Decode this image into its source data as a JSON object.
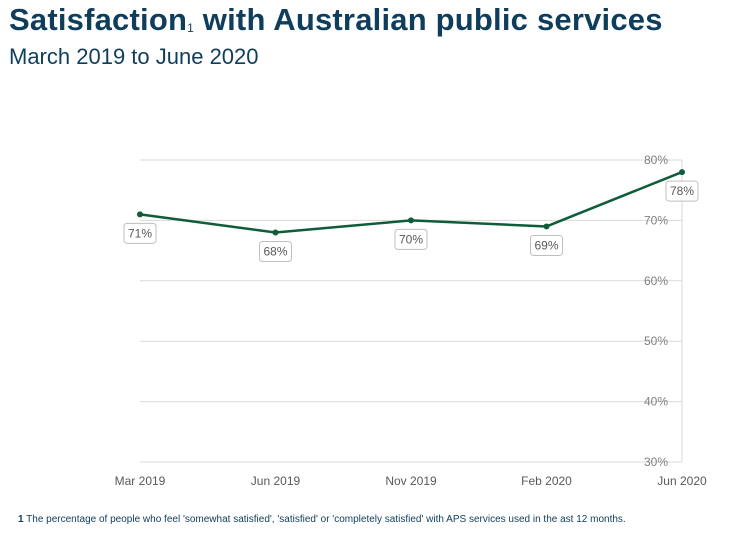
{
  "title": "Satisfaction",
  "title_sup": "1",
  "title_rest": " with Australian public services",
  "subtitle": "March 2019 to June 2020",
  "footnote_marker": "1",
  "footnote": " The percentage of people who feel 'somewhat satisfied', 'satisfied' or 'completely satisfied' with APS services used in the ast 12 months.",
  "chart_data": {
    "type": "line",
    "categories": [
      "Mar 2019",
      "Jun 2019",
      "Nov 2019",
      "Feb 2020",
      "Jun 2020"
    ],
    "values": [
      71,
      68,
      70,
      69,
      78
    ],
    "data_labels": [
      "71%",
      "68%",
      "70%",
      "69%",
      "78%"
    ],
    "ylim": [
      30,
      80
    ],
    "yticks": [
      "30%",
      "40%",
      "50%",
      "60%",
      "70%",
      "80%"
    ],
    "ytick_values": [
      30,
      40,
      50,
      60,
      70,
      80
    ],
    "y_axis_side": "right",
    "grid": true,
    "line_color": "#0e5c3a",
    "title_color": "#0f3d5c"
  }
}
